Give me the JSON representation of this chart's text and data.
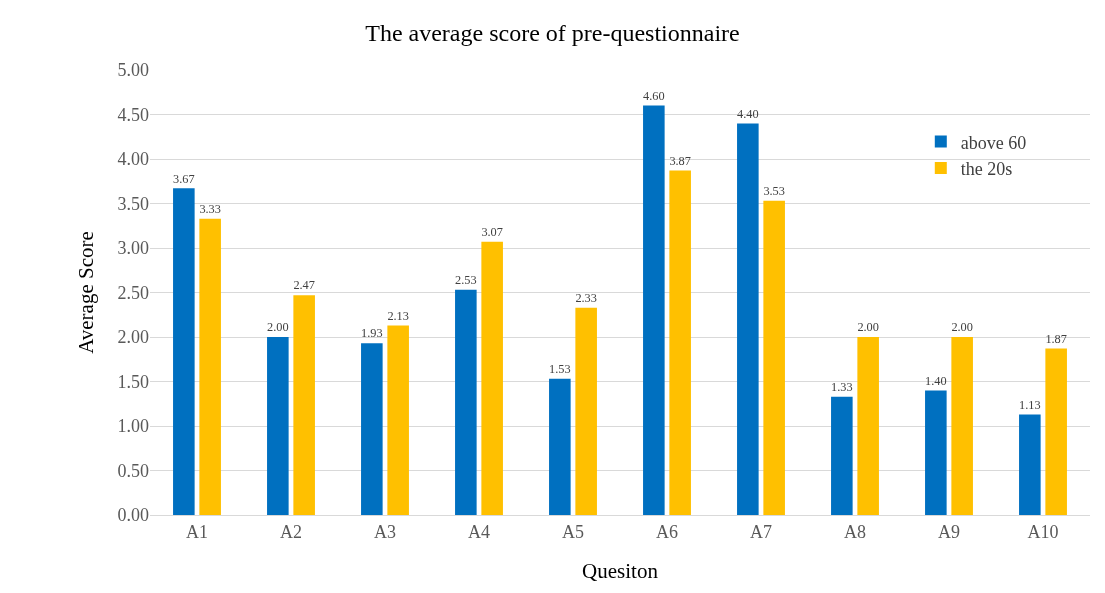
{
  "chart_data": {
    "type": "bar",
    "title": "The average score of pre-questionnaire",
    "xlabel": "Quesiton",
    "ylabel": "Average Score",
    "categories": [
      "A1",
      "A2",
      "A3",
      "A4",
      "A5",
      "A6",
      "A7",
      "A8",
      "A9",
      "A10"
    ],
    "series": [
      {
        "name": "above 60",
        "color": "#0070c0",
        "values": [
          3.67,
          2.0,
          1.93,
          2.53,
          1.53,
          4.6,
          4.4,
          1.33,
          1.4,
          1.13
        ],
        "value_labels": [
          "3.67",
          "2.00",
          "1.93",
          "2.53",
          "1.53",
          "4.60",
          "4.40",
          "1.33",
          "1.40",
          "1.13"
        ]
      },
      {
        "name": "the 20s",
        "color": "#ffc000",
        "values": [
          3.33,
          2.47,
          2.13,
          3.07,
          2.33,
          3.87,
          3.53,
          2.0,
          2.0,
          1.87
        ],
        "value_labels": [
          "3.33",
          "2.47",
          "2.13",
          "3.07",
          "2.33",
          "3.87",
          "3.53",
          "2.00",
          "2.00",
          "1.87"
        ]
      }
    ],
    "ylim": [
      0,
      5
    ],
    "yticks": [
      {
        "value": 0,
        "label": "0.00"
      },
      {
        "value": 0.5,
        "label": "0.50"
      },
      {
        "value": 1,
        "label": "1.00"
      },
      {
        "value": 1.5,
        "label": "1.50"
      },
      {
        "value": 2,
        "label": "2.00"
      },
      {
        "value": 2.5,
        "label": "2.50"
      },
      {
        "value": 3,
        "label": "3.00"
      },
      {
        "value": 3.5,
        "label": "3.50"
      },
      {
        "value": 4,
        "label": "4.00"
      },
      {
        "value": 4.5,
        "label": "4.50"
      },
      {
        "value": 5,
        "label": "5.00"
      }
    ],
    "grid": "y",
    "legend": "top right"
  }
}
